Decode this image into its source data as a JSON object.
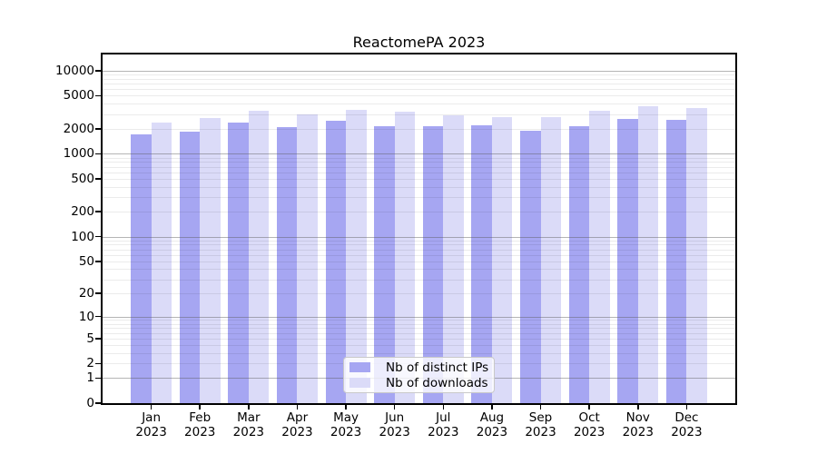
{
  "title": "ReactomePA 2023",
  "chart_data": {
    "type": "bar",
    "title": "ReactomePA 2023",
    "xlabel": "",
    "ylabel": "",
    "scale": "log10(1+v)",
    "ylim": [
      0,
      15700
    ],
    "grid": "horizontal major+minor, legend at bottom-center inside plot",
    "categories": [
      "Jan",
      "Feb",
      "Mar",
      "Apr",
      "May",
      "Jun",
      "Jul",
      "Aug",
      "Sep",
      "Oct",
      "Nov",
      "Dec"
    ],
    "year": "2023",
    "yticks": [
      10000,
      5000,
      2000,
      1000,
      500,
      200,
      100,
      50,
      20,
      10,
      5,
      2,
      1,
      0
    ],
    "series": [
      {
        "name": "Nb of distinct IPs",
        "color": "#a6a6f2",
        "values": [
          1705,
          1845,
          2370,
          2090,
          2495,
          2145,
          2145,
          2200,
          1890,
          2145,
          2625,
          2555
        ]
      },
      {
        "name": "Nb of downloads",
        "color": "#dbdbf8",
        "values": [
          2370,
          2690,
          3295,
          2975,
          3380,
          3210,
          2905,
          2760,
          2760,
          3295,
          3740,
          3555
        ]
      }
    ],
    "grid_colors": {
      "major": "rgba(90,90,90,0.45)",
      "minor": "rgba(0,0,0,0.08)"
    }
  }
}
